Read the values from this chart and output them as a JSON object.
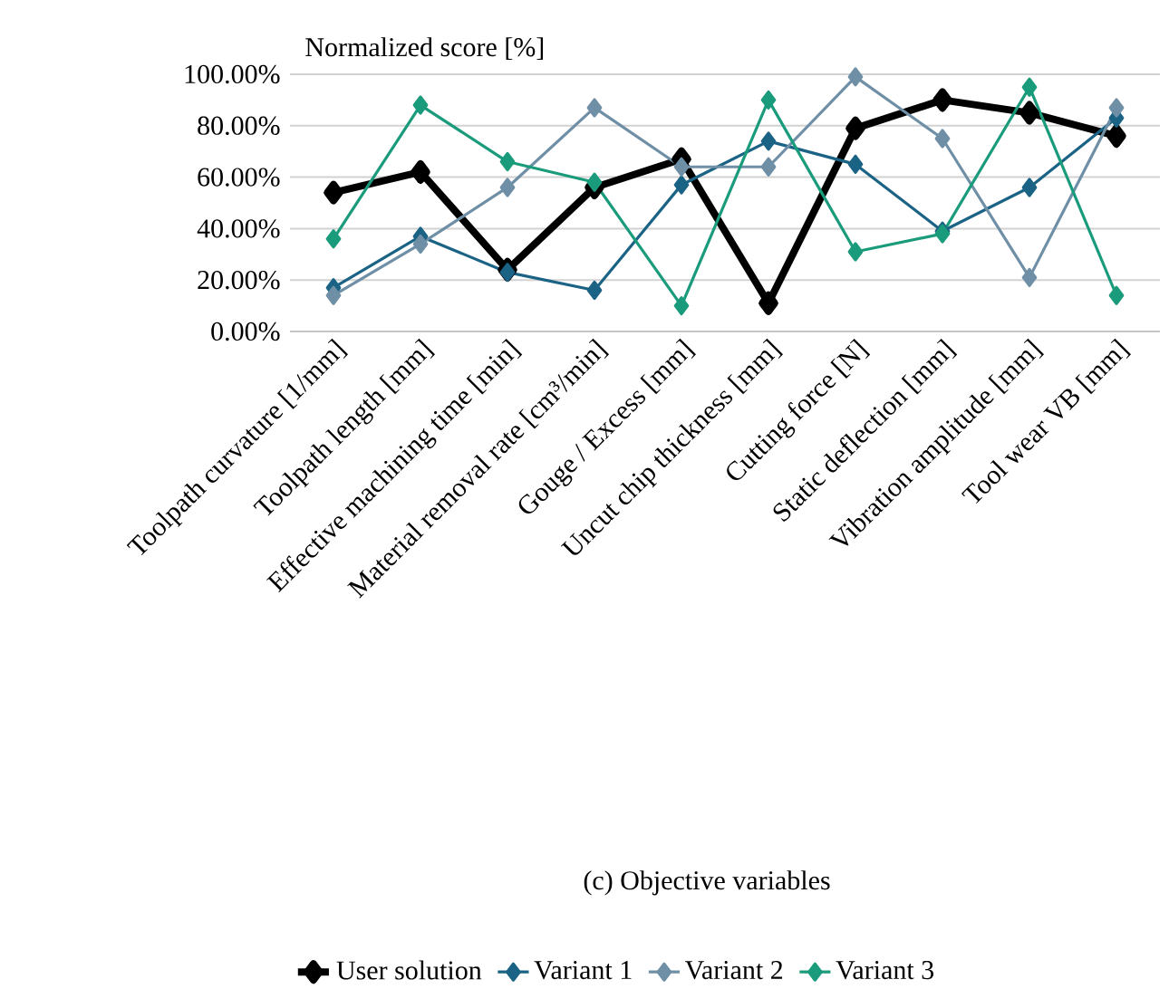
{
  "chart_data": {
    "type": "line",
    "ylabel": "Normalized score [%]",
    "categories": [
      "Toolpath curvature [1/mm]",
      "Toolpath length [mm]",
      "Effective machining time [min]",
      "Material removal rate [cm³/min]",
      "Gouge / Excess [mm]",
      "Uncut chip thickness [mm]",
      "Cutting force [N]",
      "Static deflection [mm]",
      "Vibration amplitude [mm]",
      "Tool wear VB [mm]"
    ],
    "series": [
      {
        "name": "User solution",
        "color": "#000000",
        "values": [
          54,
          62,
          24,
          56,
          67,
          11,
          79,
          90,
          85,
          76
        ]
      },
      {
        "name": "Variant 1",
        "color": "#1b6385",
        "values": [
          17,
          37,
          23,
          16,
          57,
          74,
          65,
          39,
          56,
          83
        ]
      },
      {
        "name": "Variant 2",
        "color": "#6f8fa6",
        "values": [
          14,
          34,
          56,
          87,
          64,
          64,
          99,
          75,
          21,
          87
        ]
      },
      {
        "name": "Variant 3",
        "color": "#1a9b7b",
        "values": [
          36,
          88,
          66,
          58,
          10,
          90,
          31,
          38,
          95,
          14
        ]
      }
    ],
    "ylim": [
      0,
      100
    ],
    "yticks": [
      {
        "value": 0,
        "label": "0.00%"
      },
      {
        "value": 20,
        "label": "20.00%"
      },
      {
        "value": 40,
        "label": "40.00%"
      },
      {
        "value": 60,
        "label": "60.00%"
      },
      {
        "value": 80,
        "label": "80.00%"
      },
      {
        "value": 100,
        "label": "100.00%"
      }
    ],
    "grid": "y",
    "legend": "bottom",
    "marker": "diamond",
    "line_style": "solid",
    "annotations": [
      "(c) Objective variables"
    ]
  }
}
